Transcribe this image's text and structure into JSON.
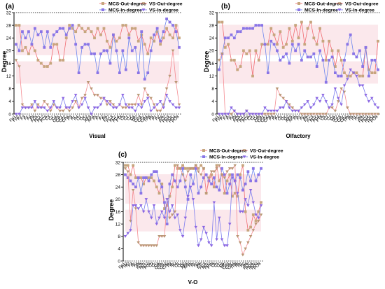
{
  "colors": {
    "mcs_out": "#C6A67E",
    "mcs_in": "#8A74E6",
    "vs_out": "#B99775",
    "vs_in": "#8B66E2",
    "mcs_out_line": "#F06A70",
    "vs_out_line": "#F48A90",
    "mcs_in_line": "#6C86EE",
    "vs_in_line": "#7B7BEE",
    "band": "#FBE8EC"
  },
  "chart_data": [
    {
      "type": "line",
      "panel_label": "(a)",
      "xlabel": "Visual",
      "ylabel": "Degree",
      "ylim": [
        0,
        32
      ],
      "yticks": [
        0,
        4,
        8,
        12,
        16,
        20,
        24,
        28,
        32
      ],
      "grid": false,
      "legend_position": "top-right",
      "categories": [
        "Fp1",
        "Fp2",
        "F7",
        "F3",
        "Fz",
        "F4",
        "F8",
        "FC5",
        "FC1",
        "FC2",
        "FC6",
        "C3",
        "Cz",
        "C4",
        "CP5",
        "CP1",
        "CP2",
        "CP6",
        "P3",
        "Pz",
        "P4",
        "O1",
        "Oz",
        "O2",
        "AF3",
        "AF4",
        "F5",
        "F1",
        "F2",
        "F6",
        "FT7",
        "FC3",
        "FCz",
        "FC4",
        "FT8",
        "C5",
        "C1",
        "C2",
        "C6",
        "TP7",
        "CP3",
        "CPz",
        "CP4",
        "TP8",
        "P5",
        "P1",
        "P2",
        "P6",
        "PO7",
        "PO3",
        "POz",
        "PO4",
        "PO8"
      ],
      "tick_labels": [
        "Fp1",
        "Fp2",
        "F7",
        "F3",
        "Fz",
        "F4",
        "F8",
        "FC5",
        "FC1",
        "FC2",
        "FC6",
        "C3",
        "Cz",
        "C4",
        "CP5",
        "CP1",
        "CP2",
        "CP6",
        "P3",
        "Pz",
        "P4",
        "O1",
        "Oz",
        "O2",
        "AF3",
        "AF4",
        "F5",
        "F1",
        "F2",
        "F6",
        "FT7",
        "FC3",
        "FCz",
        "FC4",
        "FT8",
        "C5",
        "C1",
        "C2",
        "C6",
        "TP7",
        "CP3",
        "CPz",
        "CP4",
        "TP8",
        "P5",
        "P1",
        "P2",
        "P6",
        "PO7",
        "PO3",
        "POz",
        "PO4",
        "PO8"
      ],
      "series": [
        {
          "name": "MCS-Out-degree",
          "values": [
            28,
            28,
            20,
            21,
            19,
            22,
            20,
            17,
            16,
            15,
            15,
            16,
            22,
            22,
            17,
            17,
            24,
            28,
            27,
            26,
            28,
            27,
            26,
            27,
            26,
            24,
            27,
            25,
            27,
            23,
            21,
            25,
            23,
            24,
            28,
            28,
            25,
            27,
            27,
            23,
            25,
            22,
            19,
            24,
            23,
            26,
            22,
            24,
            27,
            25,
            24,
            28,
            24
          ]
        },
        {
          "name": "MCS-In-degree",
          "values": [
            22,
            20,
            26,
            24,
            26,
            22,
            27,
            25,
            26,
            21,
            26,
            21,
            25,
            26,
            27,
            27,
            25,
            27,
            28,
            22,
            13,
            21,
            22,
            22,
            19,
            19,
            13,
            19,
            20,
            20,
            16,
            25,
            20,
            13,
            20,
            14,
            24,
            20,
            21,
            13,
            26,
            11,
            13,
            20,
            25,
            27,
            23,
            26,
            30,
            29,
            28,
            26,
            21
          ]
        },
        {
          "name": "VS-Out-degree",
          "values": [
            17,
            15,
            3,
            2,
            2,
            3,
            1,
            3,
            2,
            4,
            3,
            1,
            3,
            2,
            1,
            1,
            2,
            1,
            2,
            4,
            2,
            5,
            6,
            10,
            8,
            6,
            6,
            5,
            5,
            3,
            4,
            3,
            2,
            3,
            2,
            2,
            3,
            3,
            3,
            6,
            3,
            8,
            6,
            5,
            3,
            1,
            1,
            3,
            8,
            12,
            20,
            10,
            3
          ]
        },
        {
          "name": "VS-In-degree",
          "values": [
            0,
            0,
            2,
            2,
            2,
            2,
            4,
            2,
            2,
            2,
            1,
            2,
            4,
            2,
            2,
            5,
            2,
            2,
            4,
            6,
            2,
            3,
            5,
            2,
            0,
            2,
            2,
            3,
            5,
            4,
            3,
            2,
            2,
            3,
            6,
            3,
            2,
            2,
            1,
            3,
            2,
            4,
            5,
            1,
            2,
            3,
            4,
            2,
            6,
            4,
            3,
            2,
            2
          ]
        }
      ]
    },
    {
      "type": "line",
      "panel_label": "(b)",
      "xlabel": "Olfactory",
      "ylabel": "Degree",
      "ylim": [
        0,
        32
      ],
      "yticks": [
        0,
        4,
        8,
        12,
        16,
        20,
        24,
        28,
        32
      ],
      "grid": false,
      "legend_position": "top-right",
      "categories": [
        "Fp1",
        "Fp2",
        "F7",
        "F3",
        "Fz",
        "F4",
        "F8",
        "FC5",
        "FC1",
        "FC2",
        "FC6",
        "C3",
        "Cz",
        "C4",
        "CP5",
        "CP1",
        "CP2",
        "CP6",
        "P3",
        "Pz",
        "P4",
        "O1",
        "Oz",
        "O2",
        "AF3",
        "AF4",
        "F5",
        "F1",
        "F2",
        "F6",
        "FT7",
        "FC3",
        "FCz",
        "FC4",
        "FT8",
        "C5",
        "C1",
        "C2",
        "C6",
        "TP7",
        "CP3",
        "CPz",
        "CP4",
        "TP8",
        "P5",
        "P1",
        "P2",
        "P6",
        "PO7",
        "PO3",
        "POz",
        "PO4",
        "PO8"
      ],
      "tick_labels": [
        "Fp1",
        "Fp2",
        "F7",
        "F3",
        "Fz",
        "F4",
        "F8",
        "FC5",
        "FC1",
        "FC2",
        "FC6",
        "C3",
        "Cz",
        "C4",
        "CP5",
        "CP1",
        "CP2",
        "CP6",
        "P3",
        "Pz",
        "P4",
        "O1",
        "Oz",
        "O2",
        "AF3",
        "AF4",
        "F5",
        "F1",
        "F2",
        "F6",
        "FT7",
        "FC3",
        "FCz",
        "FC4",
        "FT8",
        "C5",
        "C1",
        "C2",
        "C6",
        "TP7",
        "CP3",
        "CPz",
        "CP4",
        "TP8",
        "P5",
        "P1",
        "P2",
        "P6",
        "PO7",
        "PO3",
        "POz",
        "PO4",
        "PO8"
      ],
      "series": [
        {
          "name": "MCS-Out-degree",
          "values": [
            29,
            29,
            21,
            22,
            17,
            17,
            14,
            15,
            20,
            19,
            20,
            12,
            20,
            17,
            22,
            22,
            22,
            27,
            25,
            22,
            26,
            21,
            22,
            27,
            23,
            28,
            24,
            29,
            22,
            27,
            29,
            24,
            22,
            27,
            23,
            17,
            23,
            20,
            15,
            20,
            17,
            13,
            12,
            12,
            13,
            13,
            12,
            12,
            21,
            14,
            13,
            13,
            23
          ]
        },
        {
          "name": "MCS-In-degree",
          "values": [
            14,
            19,
            24,
            24,
            25,
            24,
            26,
            26,
            27,
            27,
            27,
            27,
            28,
            28,
            28,
            22,
            13,
            23,
            22,
            20,
            17,
            18,
            19,
            16,
            22,
            20,
            22,
            17,
            20,
            18,
            18,
            19,
            15,
            20,
            17,
            10,
            17,
            18,
            13,
            12,
            12,
            17,
            22,
            25,
            19,
            18,
            20,
            15,
            21,
            12,
            17,
            17,
            14
          ]
        },
        {
          "name": "VS-Out-degree",
          "values": [
            17,
            19,
            0,
            0,
            0,
            1,
            0,
            0,
            0,
            1,
            0,
            0,
            0,
            0,
            0,
            0,
            0,
            0,
            0,
            8,
            6,
            5,
            4,
            3,
            2,
            1,
            1,
            0,
            0,
            0,
            0,
            0,
            0,
            0,
            0,
            0,
            2,
            2,
            1,
            4,
            8,
            7,
            2,
            0,
            0,
            0,
            0,
            0,
            0,
            0,
            0,
            0,
            0
          ]
        },
        {
          "name": "VS-In-degree",
          "values": [
            0,
            0,
            0,
            0,
            2,
            1,
            0,
            0,
            0,
            1,
            0,
            0,
            0,
            0,
            0,
            2,
            1,
            1,
            1,
            1,
            2,
            2,
            4,
            2,
            1,
            1,
            1,
            2,
            3,
            4,
            2,
            3,
            5,
            4,
            6,
            4,
            2,
            3,
            8,
            5,
            3,
            9,
            11,
            14,
            13,
            12,
            9,
            9,
            6,
            4,
            5,
            3,
            2
          ]
        }
      ]
    },
    {
      "type": "line",
      "panel_label": "(c)",
      "xlabel": "V-O",
      "ylabel": "Degree",
      "ylim": [
        0,
        32
      ],
      "yticks": [
        0,
        4,
        8,
        12,
        16,
        20,
        24,
        28,
        32
      ],
      "grid": false,
      "legend_position": "top-right",
      "categories": [
        "Fp1",
        "Fp2",
        "F7",
        "F3",
        "Fz",
        "F4",
        "F8",
        "FC5",
        "FC1",
        "FC2",
        "FC6",
        "C3",
        "Cz",
        "C4",
        "CP5",
        "CP1",
        "CP2",
        "CP6",
        "P3",
        "Pz",
        "P4",
        "O1",
        "Oz",
        "O2",
        "AF3",
        "AF4",
        "F5",
        "F1",
        "F2",
        "F6",
        "FT7",
        "FC3",
        "FCz",
        "FC4",
        "FT8",
        "C5",
        "C1",
        "C2",
        "C6",
        "TP7",
        "CP3",
        "CPz",
        "CP4",
        "TP8",
        "P5",
        "P1",
        "P2",
        "P6",
        "PO7",
        "PO3",
        "POz",
        "PO4",
        "PO8"
      ],
      "tick_labels": [
        "Fp1",
        "Fp2",
        "F7",
        "F3",
        "Fz",
        "F4",
        "F8",
        "FC5",
        "FC1",
        "FC2",
        "FC6",
        "C3",
        "Cz",
        "C4",
        "CP5",
        "CP1",
        "CP2",
        "CP6",
        "P3",
        "Pz",
        "P4",
        "O1",
        "Oz",
        "O2",
        "AF3",
        "AF4",
        "F5",
        "F1",
        "F2",
        "F6",
        "FT7",
        "FC3",
        "FCz",
        "FC4",
        "FT8",
        "C5",
        "C1",
        "C2",
        "C6",
        "TP7",
        "CP3",
        "CPz",
        "CP4",
        "TP8",
        "P5",
        "P1",
        "P2",
        "P6",
        "PO7",
        "PO3",
        "POz",
        "PO4",
        "PO8"
      ],
      "series": [
        {
          "name": "MCS-Out-degree",
          "values": [
            31,
            31,
            28,
            31,
            27,
            27,
            27,
            25,
            27,
            27,
            27,
            26,
            24,
            22,
            25,
            17,
            18,
            21,
            24,
            31,
            30,
            30,
            31,
            30,
            30,
            30,
            30,
            31,
            30,
            31,
            30,
            22,
            26,
            28,
            24,
            31,
            26,
            28,
            22,
            26,
            28,
            21,
            22,
            21,
            28,
            31,
            16,
            10,
            11,
            15,
            13,
            16,
            19
          ]
        },
        {
          "name": "MCS-In-degree",
          "values": [
            28,
            27,
            26,
            25,
            24,
            27,
            22,
            27,
            27,
            26,
            28,
            29,
            29,
            26,
            24,
            19,
            12,
            25,
            28,
            26,
            24,
            26,
            30,
            24,
            20,
            28,
            25,
            30,
            22,
            24,
            27,
            28,
            26,
            25,
            27,
            24,
            23,
            30,
            28,
            22,
            25,
            28,
            26,
            28,
            27,
            23,
            25,
            29,
            26,
            30,
            26,
            28,
            30
          ]
        },
        {
          "name": "VS-Out-degree",
          "values": [
            30,
            29,
            13,
            23,
            17,
            6,
            5,
            5,
            5,
            5,
            5,
            5,
            5,
            8,
            8,
            8,
            20,
            14,
            15,
            16,
            31,
            30,
            28,
            26,
            29,
            30,
            30,
            31,
            29,
            28,
            30,
            22,
            27,
            29,
            29,
            30,
            31,
            28,
            27,
            29,
            30,
            30,
            31,
            8,
            6,
            2,
            4,
            6,
            8,
            10,
            12,
            13,
            15
          ]
        },
        {
          "name": "VS-In-degree",
          "values": [
            8,
            9,
            10,
            18,
            18,
            17,
            18,
            16,
            20,
            16,
            14,
            18,
            12,
            14,
            16,
            14,
            20,
            16,
            18,
            14,
            15,
            10,
            8,
            14,
            21,
            24,
            20,
            11,
            5,
            7,
            11,
            9,
            6,
            5,
            19,
            7,
            14,
            7,
            5,
            5,
            12,
            27,
            26,
            22,
            16,
            16,
            20,
            18,
            23,
            19,
            15,
            14,
            18
          ]
        }
      ]
    }
  ]
}
